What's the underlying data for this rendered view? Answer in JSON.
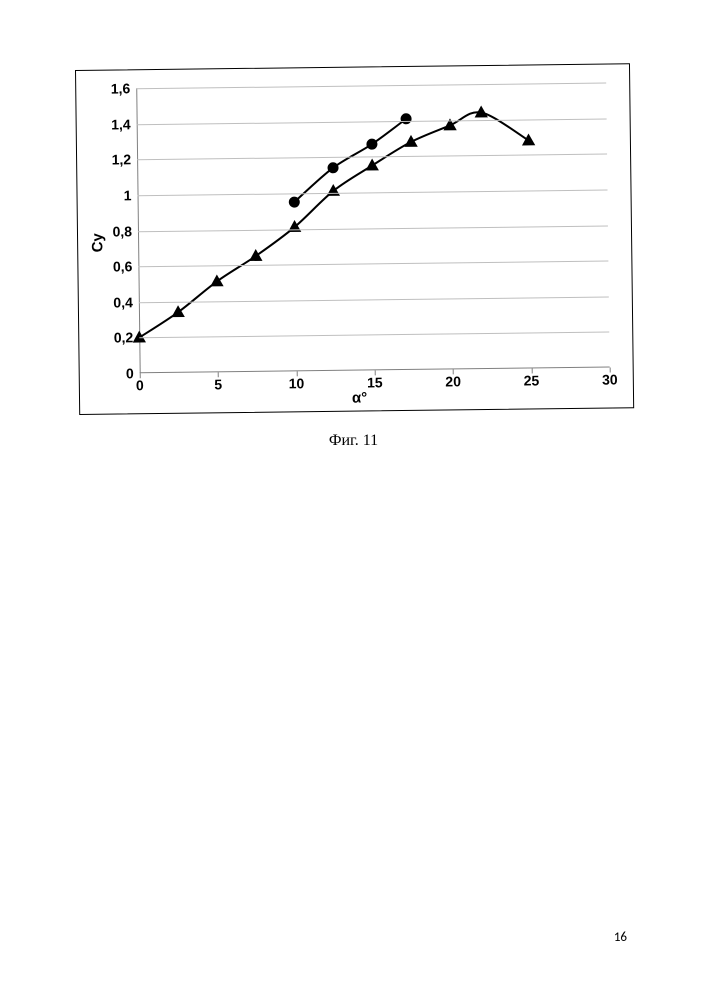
{
  "caption": "Фиг. 11",
  "page_number": "16",
  "chart": {
    "type": "line-scatter",
    "background_color": "#ffffff",
    "grid_color": "#bfbfbf",
    "axis_color": "#808080",
    "label_color": "#000000",
    "label_fontweight": "bold",
    "ylabel": "Cy",
    "xlabel": "α°",
    "xlim": [
      0,
      30
    ],
    "ylim": [
      0,
      1.6
    ],
    "xticks": [
      0,
      5,
      10,
      15,
      20,
      25,
      30
    ],
    "xtick_labels": [
      "0",
      "5",
      "10",
      "15",
      "20",
      "25",
      "30"
    ],
    "yticks": [
      0,
      0.2,
      0.4,
      0.6,
      0.8,
      1.0,
      1.2,
      1.4,
      1.6
    ],
    "ytick_labels": [
      "0",
      "0,2",
      "0,4",
      "0,6",
      "0,8",
      "1",
      "1,2",
      "1,4",
      "1,6"
    ],
    "tick_fontsize": 14,
    "axis_label_fontsize": 15,
    "series": [
      {
        "name": "triangle-series",
        "marker": "triangle",
        "marker_size": 12,
        "marker_color": "#000000",
        "line_color": "#000000",
        "line_width": 2,
        "x": [
          0,
          2.5,
          5,
          7.5,
          10,
          12.5,
          15,
          17.5,
          20,
          22,
          25
        ],
        "y": [
          0.2,
          0.34,
          0.51,
          0.65,
          0.81,
          1.01,
          1.15,
          1.28,
          1.37,
          1.44,
          1.28
        ]
      },
      {
        "name": "circle-series",
        "marker": "circle",
        "marker_size": 11,
        "marker_color": "#000000",
        "line_color": "#000000",
        "line_width": 2,
        "x": [
          10,
          12.5,
          15,
          17.2
        ],
        "y": [
          0.95,
          1.14,
          1.27,
          1.41
        ]
      }
    ]
  }
}
